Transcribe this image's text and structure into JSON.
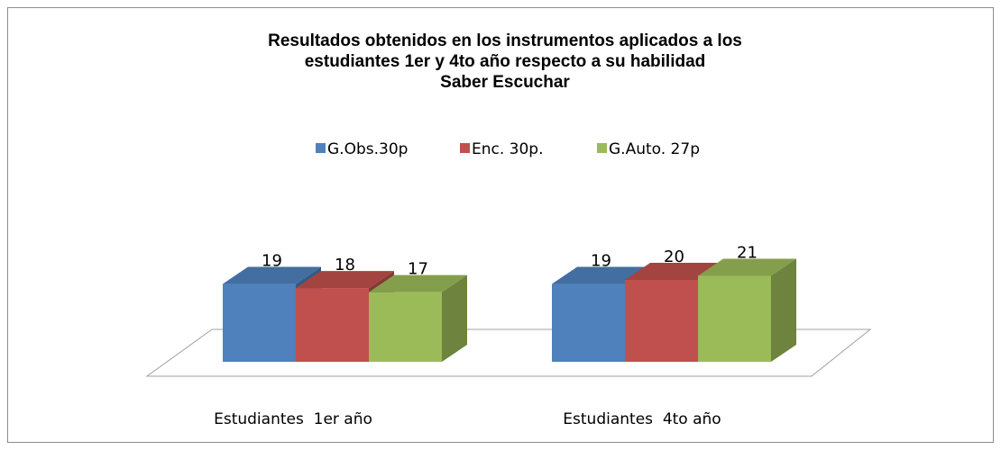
{
  "chart_data": {
    "type": "bar3d",
    "title": [
      "Resultados obtenidos en los instrumentos aplicados a los",
      "estudiantes 1er y 4to año respecto a su habilidad",
      "Saber Escuchar"
    ],
    "categories": [
      "Estudiantes  1er año",
      "Estudiantes  4to año"
    ],
    "series": [
      {
        "name": "G.Obs.30p",
        "color": "#4f81bd",
        "values": [
          19,
          19
        ]
      },
      {
        "name": "Enc. 30p.",
        "color": "#c0504d",
        "values": [
          18,
          20
        ]
      },
      {
        "name": "G.Auto. 27p",
        "color": "#9bbb59",
        "values": [
          17,
          21
        ]
      }
    ]
  }
}
